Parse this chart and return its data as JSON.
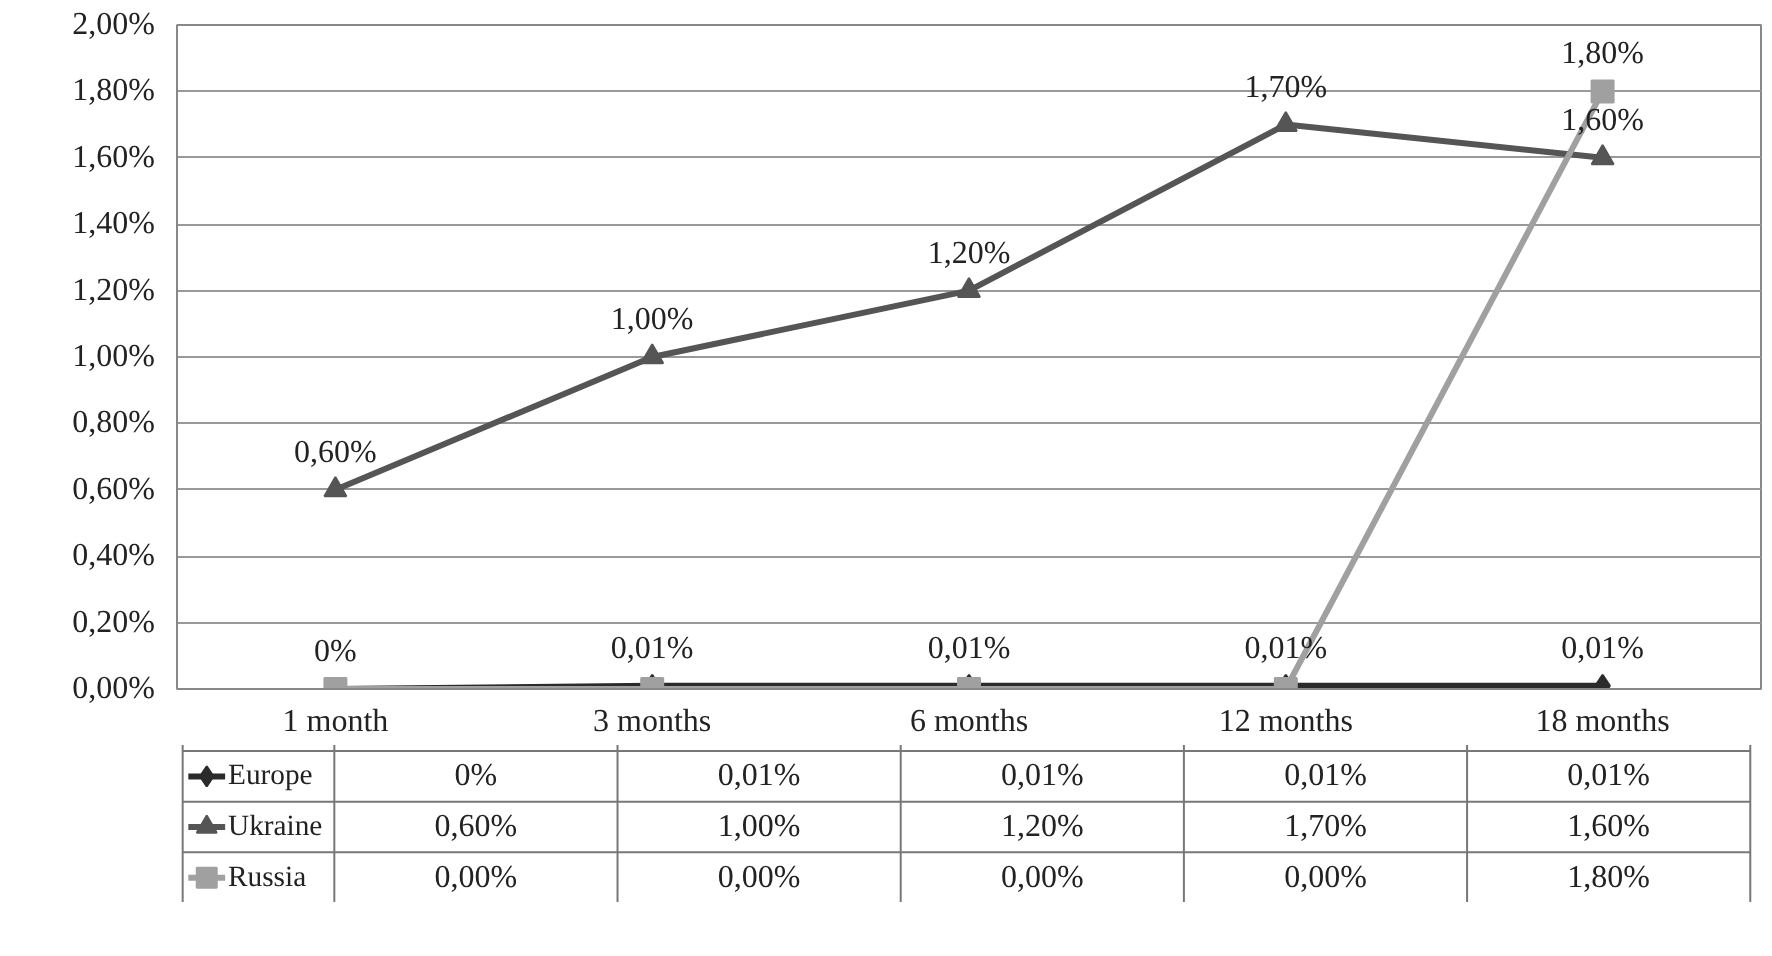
{
  "chart_data": {
    "type": "line",
    "categories": [
      "1 month",
      "3 months",
      "6 months",
      "12 months",
      "18 months"
    ],
    "ylim": [
      0,
      2
    ],
    "yticks": [
      {
        "value": 0,
        "label": "0,00%"
      },
      {
        "value": 0.2,
        "label": "0,20%"
      },
      {
        "value": 0.4,
        "label": "0,40%"
      },
      {
        "value": 0.6,
        "label": "0,60%"
      },
      {
        "value": 0.8,
        "label": "0,80%"
      },
      {
        "value": 1,
        "label": "1,00%"
      },
      {
        "value": 1.2,
        "label": "1,20%"
      },
      {
        "value": 1.4,
        "label": "1,40%"
      },
      {
        "value": 1.6,
        "label": "1,60%"
      },
      {
        "value": 1.8,
        "label": "1,80%"
      },
      {
        "value": 2,
        "label": "2,00%"
      }
    ],
    "grid": "y",
    "legend": "bottom",
    "line_style": "solid",
    "series": [
      {
        "name": "Europe",
        "color": "#2b2b2b",
        "marker": "diamond",
        "values": [
          0,
          0.01,
          0.01,
          0.01,
          0.01
        ],
        "value_labels": [
          "0%",
          "0,01%",
          "0,01%",
          "0,01%",
          "0,01%"
        ]
      },
      {
        "name": "Ukraine",
        "color": "#555555",
        "marker": "triangle",
        "values": [
          0.6,
          1.0,
          1.2,
          1.7,
          1.6
        ],
        "value_labels": [
          "0,60%",
          "1,00%",
          "1,20%",
          "1,70%",
          "1,60%"
        ]
      },
      {
        "name": "Russia",
        "color": "#a0a0a0",
        "marker": "square",
        "values": [
          0,
          0,
          0,
          0,
          1.8
        ],
        "value_labels": [
          "0,00%",
          "0,00%",
          "0,00%",
          "0,00%",
          "1,80%"
        ]
      }
    ]
  }
}
